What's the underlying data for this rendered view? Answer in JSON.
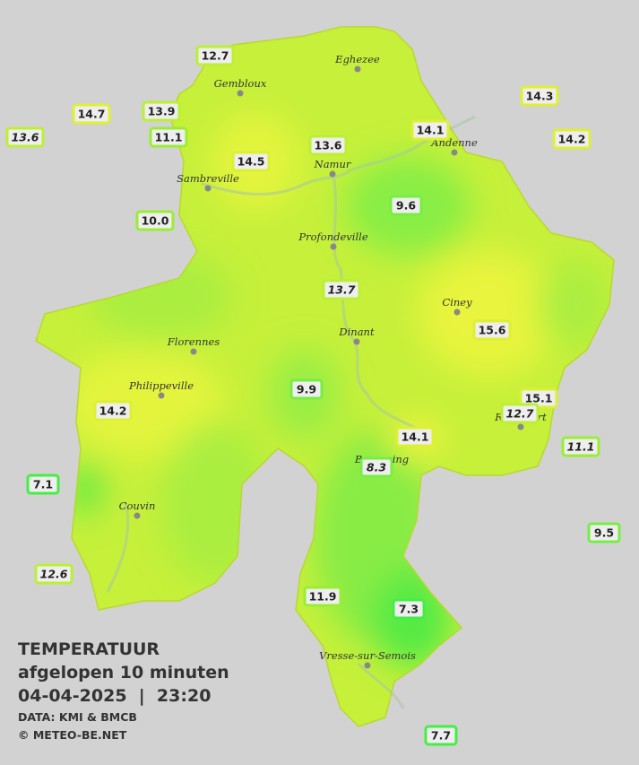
{
  "legend": {
    "title": "TEMPERATUUR",
    "subtitle": "afgelopen 10 minuten",
    "timestamp": "04-04-2025  |  23:20",
    "source": "DATA: KMI & BMCB",
    "copyright": "© METEO-BE.NET"
  },
  "cities": [
    {
      "name": "Eghezee"
    },
    {
      "name": "Gembloux"
    },
    {
      "name": "Andenne"
    },
    {
      "name": "Namur"
    },
    {
      "name": "Sambreville"
    },
    {
      "name": "Profondeville"
    },
    {
      "name": "Ciney"
    },
    {
      "name": "Dinant"
    },
    {
      "name": "Florennes"
    },
    {
      "name": "Philippeville"
    },
    {
      "name": "Couvin"
    },
    {
      "name": "Vresse-sur-Semois"
    },
    {
      "name": "Rochefort"
    },
    {
      "name": "Beauraing"
    }
  ],
  "stations": [
    {
      "value": "12.7"
    },
    {
      "value": "14.7"
    },
    {
      "value": "13.9"
    },
    {
      "value": "13.6"
    },
    {
      "value": "11.1"
    },
    {
      "value": "14.3"
    },
    {
      "value": "14.1"
    },
    {
      "value": "14.2"
    },
    {
      "value": "13.6"
    },
    {
      "value": "14.5"
    },
    {
      "value": "10.0"
    },
    {
      "value": "9.6"
    },
    {
      "value": "13.7"
    },
    {
      "value": "15.6"
    },
    {
      "value": "9.9"
    },
    {
      "value": "15.1"
    },
    {
      "value": "12.7"
    },
    {
      "value": "14.2"
    },
    {
      "value": "14.1"
    },
    {
      "value": "11.1"
    },
    {
      "value": "8.3"
    },
    {
      "value": "7.1"
    },
    {
      "value": "9.5"
    },
    {
      "value": "12.6"
    },
    {
      "value": "11.9"
    },
    {
      "value": "7.3"
    },
    {
      "value": "7.7"
    }
  ]
}
